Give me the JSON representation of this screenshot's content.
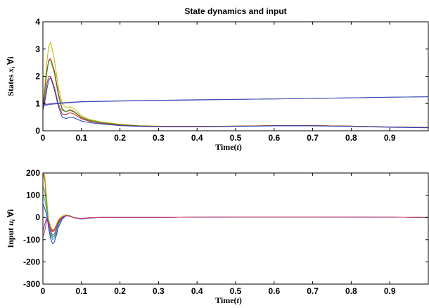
{
  "chart_data": [
    {
      "type": "line",
      "title": "State dynamics and input",
      "xlabel": "Time(t)",
      "ylabel": "States x_i ∀i",
      "xlim": [
        0,
        1
      ],
      "ylim": [
        0,
        4
      ],
      "xticks": [
        "0",
        "0.1",
        "0.2",
        "0.3",
        "0.4",
        "0.5",
        "0.6",
        "0.7",
        "0.8",
        "0.9"
      ],
      "yticks": [
        "0",
        "1",
        "2",
        "3",
        "4"
      ],
      "grid": false,
      "series": [
        {
          "color": "#b8b800",
          "x": [
            0,
            0.005,
            0.01,
            0.015,
            0.02,
            0.03,
            0.04,
            0.05,
            0.06,
            0.07,
            0.08,
            0.1,
            0.12,
            0.15,
            0.2,
            0.25,
            0.3,
            0.4,
            0.5,
            0.6,
            0.7,
            0.8,
            0.9,
            1.0
          ],
          "y": [
            0.9,
            1.6,
            2.5,
            3.1,
            3.25,
            2.6,
            1.6,
            1.0,
            0.85,
            0.88,
            0.82,
            0.55,
            0.42,
            0.33,
            0.24,
            0.19,
            0.17,
            0.16,
            0.17,
            0.19,
            0.19,
            0.17,
            0.14,
            0.12
          ]
        },
        {
          "color": "#e0201a",
          "x": [
            0,
            0.005,
            0.01,
            0.015,
            0.02,
            0.03,
            0.04,
            0.05,
            0.06,
            0.07,
            0.08,
            0.1,
            0.12,
            0.15,
            0.2,
            0.25,
            0.3,
            0.4,
            0.5,
            0.6,
            0.7,
            0.8,
            0.9,
            1.0
          ],
          "y": [
            0.9,
            1.5,
            2.2,
            2.6,
            2.65,
            2.2,
            1.4,
            0.8,
            0.7,
            0.75,
            0.7,
            0.48,
            0.38,
            0.3,
            0.22,
            0.18,
            0.16,
            0.16,
            0.17,
            0.19,
            0.19,
            0.17,
            0.14,
            0.12
          ]
        },
        {
          "color": "#2aa02a",
          "x": [
            0,
            0.005,
            0.01,
            0.015,
            0.02,
            0.03,
            0.04,
            0.05,
            0.06,
            0.07,
            0.08,
            0.1,
            0.12,
            0.15,
            0.2,
            0.25,
            0.3,
            0.4,
            0.5,
            0.6,
            0.7,
            0.8,
            0.9,
            1.0
          ],
          "y": [
            0.85,
            1.4,
            2.1,
            2.55,
            2.6,
            2.1,
            1.3,
            0.75,
            0.7,
            0.78,
            0.72,
            0.5,
            0.39,
            0.3,
            0.22,
            0.18,
            0.16,
            0.16,
            0.17,
            0.19,
            0.19,
            0.17,
            0.14,
            0.12
          ]
        },
        {
          "color": "#c03030",
          "x": [
            0,
            0.005,
            0.01,
            0.015,
            0.02,
            0.03,
            0.04,
            0.05,
            0.06,
            0.07,
            0.08,
            0.1,
            0.12,
            0.15,
            0.2,
            0.25,
            0.3,
            0.4,
            0.5,
            0.6,
            0.7,
            0.8,
            0.9,
            1.0
          ],
          "y": [
            0.8,
            1.2,
            1.7,
            2.0,
            2.0,
            1.6,
            1.0,
            0.62,
            0.6,
            0.66,
            0.62,
            0.44,
            0.35,
            0.28,
            0.21,
            0.17,
            0.16,
            0.16,
            0.17,
            0.19,
            0.19,
            0.17,
            0.14,
            0.12
          ]
        },
        {
          "color": "#2040c0",
          "x": [
            0,
            0.005,
            0.01,
            0.015,
            0.02,
            0.03,
            0.04,
            0.05,
            0.06,
            0.07,
            0.08,
            0.1,
            0.12,
            0.15,
            0.2,
            0.25,
            0.3,
            0.4,
            0.5,
            0.6,
            0.7,
            0.8,
            0.9,
            1.0
          ],
          "y": [
            0.75,
            1.05,
            1.5,
            1.85,
            1.95,
            1.5,
            0.9,
            0.5,
            0.45,
            0.5,
            0.48,
            0.36,
            0.3,
            0.25,
            0.19,
            0.16,
            0.15,
            0.15,
            0.16,
            0.18,
            0.18,
            0.16,
            0.13,
            0.11
          ]
        },
        {
          "color": "#7040c0",
          "x": [
            0,
            0.02,
            0.05,
            0.1,
            0.2,
            0.3,
            0.4,
            0.5,
            0.6,
            0.7,
            0.8,
            0.9,
            1.0
          ],
          "y": [
            0.95,
            1.0,
            1.03,
            1.07,
            1.1,
            1.12,
            1.14,
            1.15,
            1.17,
            1.19,
            1.21,
            1.23,
            1.25
          ]
        },
        {
          "color": "#3050b0",
          "x": [
            0,
            0.02,
            0.05,
            0.1,
            0.2,
            0.3,
            0.4,
            0.5,
            0.6,
            0.7,
            0.8,
            0.9,
            1.0
          ],
          "y": [
            0.92,
            0.97,
            1.01,
            1.06,
            1.09,
            1.11,
            1.13,
            1.15,
            1.17,
            1.19,
            1.21,
            1.23,
            1.25
          ]
        }
      ]
    },
    {
      "type": "line",
      "title": "",
      "xlabel": "Time(t)",
      "ylabel": "Input u_i ∀i",
      "xlim": [
        0,
        1
      ],
      "ylim": [
        -300,
        200
      ],
      "xticks": [
        "0",
        "0.1",
        "0.2",
        "0.3",
        "0.4",
        "0.5",
        "0.6",
        "0.7",
        "0.8",
        "0.9"
      ],
      "yticks": [
        "200",
        "100",
        "0",
        "-100",
        "-200",
        "-300"
      ],
      "grid": false,
      "series": [
        {
          "color": "#e0201a",
          "x": [
            0,
            0.005,
            0.01,
            0.015,
            0.02,
            0.025,
            0.03,
            0.035,
            0.04,
            0.05,
            0.06,
            0.07,
            0.08,
            0.1,
            0.12,
            0.15,
            0.2,
            0.3,
            0.5,
            0.7,
            0.9,
            1.0
          ],
          "y": [
            200,
            170,
            60,
            -20,
            -50,
            -60,
            -55,
            -35,
            -15,
            5,
            10,
            5,
            -2,
            -5,
            -2,
            0,
            0,
            0,
            2,
            2,
            1,
            0
          ]
        },
        {
          "color": "#2aa02a",
          "x": [
            0,
            0.005,
            0.01,
            0.015,
            0.02,
            0.025,
            0.03,
            0.035,
            0.04,
            0.05,
            0.06,
            0.07,
            0.08,
            0.1,
            0.12,
            0.15,
            0.2,
            0.3,
            0.5,
            0.7,
            0.9,
            1.0
          ],
          "y": [
            140,
            120,
            50,
            -30,
            -70,
            -90,
            -85,
            -60,
            -30,
            0,
            10,
            8,
            0,
            -6,
            -3,
            0,
            0,
            0,
            2,
            2,
            1,
            0
          ]
        },
        {
          "color": "#40a0c0",
          "x": [
            0,
            0.005,
            0.01,
            0.015,
            0.02,
            0.025,
            0.03,
            0.035,
            0.04,
            0.05,
            0.06,
            0.07,
            0.08,
            0.1,
            0.12,
            0.15,
            0.2,
            0.3,
            0.5,
            0.7,
            0.9,
            1.0
          ],
          "y": [
            100,
            80,
            30,
            -40,
            -80,
            -100,
            -95,
            -70,
            -40,
            -5,
            9,
            7,
            0,
            -6,
            -3,
            0,
            0,
            0,
            2,
            2,
            1,
            0
          ]
        },
        {
          "color": "#2040c0",
          "x": [
            0,
            0.005,
            0.01,
            0.015,
            0.02,
            0.025,
            0.03,
            0.035,
            0.04,
            0.05,
            0.06,
            0.07,
            0.08,
            0.1,
            0.12,
            0.15,
            0.2,
            0.3,
            0.5,
            0.7,
            0.9,
            1.0
          ],
          "y": [
            60,
            40,
            10,
            -50,
            -95,
            -118,
            -110,
            -80,
            -45,
            -8,
            8,
            6,
            -1,
            -7,
            -3,
            0,
            0,
            0,
            2,
            2,
            1,
            0
          ]
        },
        {
          "color": "#b8b800",
          "x": [
            0,
            0.005,
            0.01,
            0.015,
            0.02,
            0.025,
            0.03,
            0.035,
            0.04,
            0.05,
            0.06,
            0.07,
            0.08,
            0.1,
            0.12,
            0.15,
            0.2,
            0.3,
            0.5,
            0.7,
            0.9,
            1.0
          ],
          "y": [
            200,
            190,
            80,
            -10,
            -40,
            -55,
            -50,
            -30,
            -10,
            6,
            11,
            6,
            -1,
            -5,
            -2,
            0,
            0,
            0,
            2,
            2,
            1,
            0
          ]
        },
        {
          "color": "#7040c0",
          "x": [
            0,
            0.005,
            0.01,
            0.015,
            0.02,
            0.025,
            0.03,
            0.035,
            0.04,
            0.05,
            0.06,
            0.07,
            0.08,
            0.1,
            0.12,
            0.15,
            0.2,
            0.3,
            0.5,
            0.7,
            0.9,
            1.0
          ],
          "y": [
            -60,
            -30,
            0,
            -20,
            -60,
            -80,
            -75,
            -50,
            -25,
            -2,
            9,
            6,
            -1,
            -5,
            -2,
            0,
            0,
            0,
            2,
            2,
            1,
            0
          ]
        },
        {
          "color": "#d03070",
          "x": [
            0,
            0.005,
            0.01,
            0.015,
            0.02,
            0.025,
            0.03,
            0.035,
            0.04,
            0.05,
            0.06,
            0.07,
            0.08,
            0.1,
            0.12,
            0.15,
            0.2,
            0.3,
            0.5,
            0.7,
            0.9,
            1.0
          ],
          "y": [
            -90,
            -60,
            -10,
            -30,
            -55,
            -65,
            -60,
            -40,
            -20,
            0,
            9,
            6,
            -1,
            -5,
            -2,
            0,
            0,
            0,
            2,
            2,
            1,
            0
          ]
        }
      ]
    }
  ]
}
